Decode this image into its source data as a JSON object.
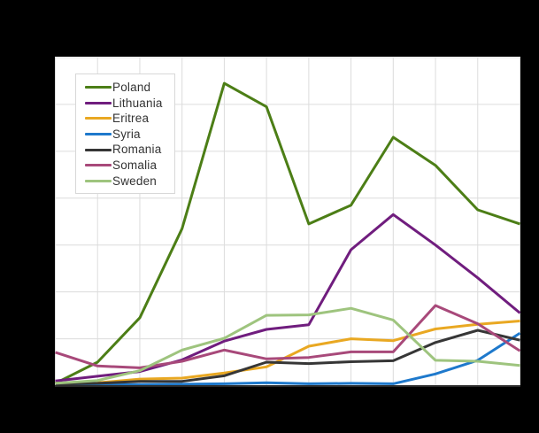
{
  "figure": {
    "background_color": "#000000",
    "plot_background_color": "#ffffff",
    "gridline_color": "#dcdcdc",
    "axis_line_color": "#2a2a2a"
  },
  "chart_data": {
    "type": "line",
    "title": "",
    "xlabel": "",
    "ylabel": "",
    "grid": true,
    "legend_position": "top-left",
    "x_tick_labels_visible": false,
    "y_tick_labels_visible": false,
    "x_point_count": 12,
    "x_indices": [
      1,
      2,
      3,
      4,
      5,
      6,
      7,
      8,
      9,
      10,
      11,
      12
    ],
    "y_unit_note": "axis unlabeled in image; values given in y-gridline units",
    "ylim": [
      0,
      7
    ],
    "y_gridline_step": 1,
    "series": [
      {
        "name": "Poland",
        "color": "#4c7e16",
        "values": [
          0.05,
          0.5,
          1.45,
          3.35,
          6.45,
          5.95,
          3.45,
          3.85,
          5.3,
          4.7,
          3.75,
          3.45
        ]
      },
      {
        "name": "Lithuania",
        "color": "#701d7e",
        "values": [
          0.1,
          0.2,
          0.3,
          0.55,
          0.95,
          1.2,
          1.3,
          2.9,
          3.65,
          3.0,
          2.3,
          1.55
        ]
      },
      {
        "name": "Eritrea",
        "color": "#e9a822",
        "values": [
          0.05,
          0.06,
          0.14,
          0.16,
          0.27,
          0.4,
          0.84,
          1.0,
          0.96,
          1.21,
          1.31,
          1.38
        ]
      },
      {
        "name": "Syria",
        "color": "#1e79cc",
        "values": [
          0.01,
          0.02,
          0.02,
          0.03,
          0.04,
          0.06,
          0.04,
          0.05,
          0.04,
          0.25,
          0.54,
          1.12
        ]
      },
      {
        "name": "Romania",
        "color": "#363636",
        "values": [
          0.03,
          0.05,
          0.09,
          0.09,
          0.21,
          0.5,
          0.47,
          0.51,
          0.53,
          0.92,
          1.18,
          0.97
        ]
      },
      {
        "name": "Somalia",
        "color": "#a8497a",
        "values": [
          0.71,
          0.42,
          0.38,
          0.52,
          0.76,
          0.57,
          0.6,
          0.72,
          0.72,
          1.71,
          1.32,
          0.74
        ]
      },
      {
        "name": "Sweden",
        "color": "#9ec47e",
        "values": [
          0.05,
          0.11,
          0.32,
          0.76,
          1.01,
          1.5,
          1.51,
          1.65,
          1.4,
          0.54,
          0.52,
          0.43
        ]
      }
    ]
  }
}
